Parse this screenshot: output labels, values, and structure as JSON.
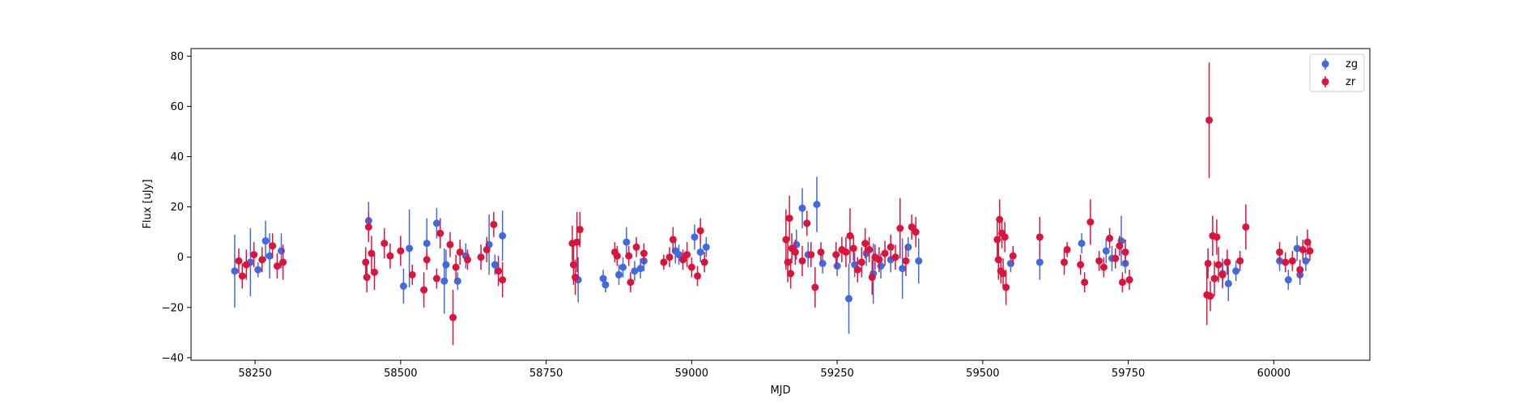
{
  "chart_data": {
    "type": "scatter",
    "title": "",
    "xlabel": "MJD",
    "ylabel": "Flux [uJy]",
    "xlim": [
      58140,
      60165
    ],
    "ylim": [
      -41,
      83
    ],
    "x_ticks": [
      58250,
      58500,
      58750,
      59000,
      59250,
      59500,
      59750,
      60000
    ],
    "y_ticks": [
      -40,
      -20,
      0,
      20,
      40,
      60,
      80
    ],
    "grid": false,
    "legend_position": "top-right",
    "error_bars": true,
    "series": [
      {
        "name": "zg",
        "color": "#4169E1",
        "points": [
          {
            "x": 58215,
            "y": -5.5,
            "err": 14.5
          },
          {
            "x": 58242,
            "y": -2.0,
            "err": 13.5
          },
          {
            "x": 58255,
            "y": -5.0,
            "err": 3.0
          },
          {
            "x": 58268,
            "y": 6.5,
            "err": 8.0
          },
          {
            "x": 58275,
            "y": 0.5,
            "err": 9.0
          },
          {
            "x": 58295,
            "y": 2.5,
            "err": 7.0
          },
          {
            "x": 58445,
            "y": 14.5,
            "err": 7.5
          },
          {
            "x": 58505,
            "y": -11.5,
            "err": 7.0
          },
          {
            "x": 58515,
            "y": 3.5,
            "err": 15.5
          },
          {
            "x": 58545,
            "y": 5.5,
            "err": 10.0
          },
          {
            "x": 58562,
            "y": 13.5,
            "err": 6.0
          },
          {
            "x": 58575,
            "y": -9.5,
            "err": 13.0
          },
          {
            "x": 58578,
            "y": -3.0,
            "err": 6.0
          },
          {
            "x": 58598,
            "y": -9.5,
            "err": 3.5
          },
          {
            "x": 58612,
            "y": 0.5,
            "err": 5.0
          },
          {
            "x": 58652,
            "y": 5.0,
            "err": 12.0
          },
          {
            "x": 58662,
            "y": -3.0,
            "err": 4.0
          },
          {
            "x": 58675,
            "y": 8.5,
            "err": 10.0
          },
          {
            "x": 58805,
            "y": -9.0,
            "err": 9.0
          },
          {
            "x": 58848,
            "y": -8.5,
            "err": 3.5
          },
          {
            "x": 58852,
            "y": -11.0,
            "err": 3.0
          },
          {
            "x": 58875,
            "y": -7.0,
            "err": 4.0
          },
          {
            "x": 58882,
            "y": -4.0,
            "err": 4.0
          },
          {
            "x": 58888,
            "y": 6.0,
            "err": 6.0
          },
          {
            "x": 58902,
            "y": -5.5,
            "err": 4.0
          },
          {
            "x": 58912,
            "y": -4.5,
            "err": 4.0
          },
          {
            "x": 58918,
            "y": -1.5,
            "err": 4.0
          },
          {
            "x": 58972,
            "y": 2.5,
            "err": 5.0
          },
          {
            "x": 58978,
            "y": 1.0,
            "err": 4.0
          },
          {
            "x": 59005,
            "y": 8.0,
            "err": 5.0
          },
          {
            "x": 59015,
            "y": 2.0,
            "err": 4.0
          },
          {
            "x": 59025,
            "y": 4.0,
            "err": 4.0
          },
          {
            "x": 59180,
            "y": 5.0,
            "err": 6.0
          },
          {
            "x": 59190,
            "y": 19.5,
            "err": 8.0
          },
          {
            "x": 59200,
            "y": 1.0,
            "err": 5.0
          },
          {
            "x": 59215,
            "y": 21.0,
            "err": 11.0
          },
          {
            "x": 59225,
            "y": -2.5,
            "err": 4.0
          },
          {
            "x": 59250,
            "y": -3.5,
            "err": 4.0
          },
          {
            "x": 59270,
            "y": -16.5,
            "err": 14.0
          },
          {
            "x": 59280,
            "y": -3.0,
            "err": 5.0
          },
          {
            "x": 59300,
            "y": 1.5,
            "err": 5.0
          },
          {
            "x": 59312,
            "y": -6.5,
            "err": 12.0
          },
          {
            "x": 59325,
            "y": -3.5,
            "err": 5.0
          },
          {
            "x": 59342,
            "y": -1.0,
            "err": 5.0
          },
          {
            "x": 59362,
            "y": -4.5,
            "err": 12.0
          },
          {
            "x": 59372,
            "y": 4.0,
            "err": 4.0
          },
          {
            "x": 59390,
            "y": -1.5,
            "err": 9.0
          },
          {
            "x": 59548,
            "y": -2.5,
            "err": 3.5
          },
          {
            "x": 59598,
            "y": -2.0,
            "err": 7.0
          },
          {
            "x": 59670,
            "y": 5.5,
            "err": 4.0
          },
          {
            "x": 59712,
            "y": 2.5,
            "err": 5.0
          },
          {
            "x": 59722,
            "y": -0.5,
            "err": 5.0
          },
          {
            "x": 59738,
            "y": 6.5,
            "err": 10.0
          },
          {
            "x": 59745,
            "y": -2.5,
            "err": 4.0
          },
          {
            "x": 59912,
            "y": -6.5,
            "err": 6.0
          },
          {
            "x": 59922,
            "y": -10.5,
            "err": 7.0
          },
          {
            "x": 59935,
            "y": -5.5,
            "err": 4.0
          },
          {
            "x": 60010,
            "y": -1.5,
            "err": 4.0
          },
          {
            "x": 60025,
            "y": -9.0,
            "err": 4.0
          },
          {
            "x": 60040,
            "y": 3.5,
            "err": 5.0
          },
          {
            "x": 60045,
            "y": -7.0,
            "err": 4.0
          },
          {
            "x": 60055,
            "y": -1.5,
            "err": 4.0
          }
        ]
      },
      {
        "name": "zr",
        "color": "#DC143C",
        "points": [
          {
            "x": 58222,
            "y": -1.5,
            "err": 5.0
          },
          {
            "x": 58228,
            "y": -7.5,
            "err": 5.0
          },
          {
            "x": 58235,
            "y": -3.0,
            "err": 6.0
          },
          {
            "x": 58248,
            "y": 1.0,
            "err": 5.0
          },
          {
            "x": 58262,
            "y": -1.0,
            "err": 5.0
          },
          {
            "x": 58280,
            "y": 4.5,
            "err": 5.0
          },
          {
            "x": 58288,
            "y": -3.5,
            "err": 5.0
          },
          {
            "x": 58298,
            "y": -2.0,
            "err": 7.0
          },
          {
            "x": 58440,
            "y": -2.0,
            "err": 6.0
          },
          {
            "x": 58442,
            "y": -8.0,
            "err": 6.0
          },
          {
            "x": 58445,
            "y": 12.0,
            "err": 6.0
          },
          {
            "x": 58450,
            "y": 1.5,
            "err": 7.0
          },
          {
            "x": 58455,
            "y": -6.0,
            "err": 7.0
          },
          {
            "x": 58472,
            "y": 5.5,
            "err": 6.0
          },
          {
            "x": 58482,
            "y": 0.5,
            "err": 5.0
          },
          {
            "x": 58500,
            "y": 2.5,
            "err": 6.0
          },
          {
            "x": 58520,
            "y": -7.0,
            "err": 4.0
          },
          {
            "x": 58540,
            "y": -13.0,
            "err": 7.0
          },
          {
            "x": 58545,
            "y": -1.0,
            "err": 4.0
          },
          {
            "x": 58562,
            "y": -8.5,
            "err": 4.0
          },
          {
            "x": 58568,
            "y": 9.5,
            "err": 6.0
          },
          {
            "x": 58585,
            "y": 5.0,
            "err": 5.0
          },
          {
            "x": 58590,
            "y": -24.0,
            "err": 11.0
          },
          {
            "x": 58595,
            "y": -4.0,
            "err": 5.0
          },
          {
            "x": 58602,
            "y": 2.0,
            "err": 5.0
          },
          {
            "x": 58615,
            "y": -1.0,
            "err": 4.0
          },
          {
            "x": 58638,
            "y": 0.0,
            "err": 5.0
          },
          {
            "x": 58648,
            "y": 3.0,
            "err": 5.0
          },
          {
            "x": 58660,
            "y": 13.0,
            "err": 5.0
          },
          {
            "x": 58668,
            "y": -5.5,
            "err": 6.0
          },
          {
            "x": 58675,
            "y": -9.0,
            "err": 7.0
          },
          {
            "x": 58795,
            "y": 5.5,
            "err": 7.0
          },
          {
            "x": 58797,
            "y": -3.0,
            "err": 8.0
          },
          {
            "x": 58800,
            "y": -8.0,
            "err": 7.0
          },
          {
            "x": 58803,
            "y": 6.0,
            "err": 12.0
          },
          {
            "x": 58808,
            "y": 11.0,
            "err": 7.0
          },
          {
            "x": 58868,
            "y": 2.0,
            "err": 4.0
          },
          {
            "x": 58872,
            "y": 0.5,
            "err": 4.0
          },
          {
            "x": 58892,
            "y": 0.5,
            "err": 4.0
          },
          {
            "x": 58895,
            "y": -10.0,
            "err": 4.0
          },
          {
            "x": 58905,
            "y": 4.0,
            "err": 4.0
          },
          {
            "x": 58918,
            "y": 1.5,
            "err": 4.0
          },
          {
            "x": 58952,
            "y": -2.0,
            "err": 3.0
          },
          {
            "x": 58962,
            "y": 0.0,
            "err": 4.0
          },
          {
            "x": 58968,
            "y": 7.0,
            "err": 5.0
          },
          {
            "x": 58985,
            "y": -1.0,
            "err": 4.0
          },
          {
            "x": 58992,
            "y": 1.0,
            "err": 5.0
          },
          {
            "x": 59000,
            "y": -4.0,
            "err": 4.0
          },
          {
            "x": 59010,
            "y": -7.5,
            "err": 4.0
          },
          {
            "x": 59015,
            "y": 10.5,
            "err": 5.0
          },
          {
            "x": 59022,
            "y": -2.0,
            "err": 4.0
          },
          {
            "x": 59162,
            "y": 7.0,
            "err": 12.0
          },
          {
            "x": 59165,
            "y": -2.0,
            "err": 8.0
          },
          {
            "x": 59168,
            "y": 15.5,
            "err": 9.0
          },
          {
            "x": 59170,
            "y": -6.5,
            "err": 6.0
          },
          {
            "x": 59172,
            "y": 3.5,
            "err": 6.0
          },
          {
            "x": 59178,
            "y": 2.0,
            "err": 5.0
          },
          {
            "x": 59190,
            "y": -1.5,
            "err": 6.0
          },
          {
            "x": 59198,
            "y": 13.5,
            "err": 5.0
          },
          {
            "x": 59205,
            "y": 1.0,
            "err": 5.0
          },
          {
            "x": 59212,
            "y": -12.0,
            "err": 8.0
          },
          {
            "x": 59222,
            "y": 2.0,
            "err": 4.0
          },
          {
            "x": 59248,
            "y": 1.0,
            "err": 5.0
          },
          {
            "x": 59258,
            "y": 3.0,
            "err": 5.0
          },
          {
            "x": 59265,
            "y": 2.0,
            "err": 6.0
          },
          {
            "x": 59272,
            "y": 8.5,
            "err": 11.0
          },
          {
            "x": 59278,
            "y": 3.5,
            "err": 5.0
          },
          {
            "x": 59285,
            "y": -5.0,
            "err": 5.0
          },
          {
            "x": 59292,
            "y": -2.0,
            "err": 6.0
          },
          {
            "x": 59298,
            "y": 5.5,
            "err": 6.0
          },
          {
            "x": 59305,
            "y": 3.0,
            "err": 5.0
          },
          {
            "x": 59310,
            "y": -8.0,
            "err": 7.0
          },
          {
            "x": 59315,
            "y": 0.0,
            "err": 5.0
          },
          {
            "x": 59322,
            "y": -1.0,
            "err": 5.0
          },
          {
            "x": 59332,
            "y": 1.5,
            "err": 5.0
          },
          {
            "x": 59342,
            "y": 4.0,
            "err": 5.0
          },
          {
            "x": 59350,
            "y": 0.0,
            "err": 5.0
          },
          {
            "x": 59358,
            "y": 11.5,
            "err": 12.0
          },
          {
            "x": 59368,
            "y": -1.5,
            "err": 6.0
          },
          {
            "x": 59378,
            "y": 12.0,
            "err": 5.0
          },
          {
            "x": 59385,
            "y": 10.0,
            "err": 6.0
          },
          {
            "x": 59525,
            "y": 7.0,
            "err": 7.0
          },
          {
            "x": 59527,
            "y": -1.0,
            "err": 8.0
          },
          {
            "x": 59529,
            "y": 15.0,
            "err": 8.0
          },
          {
            "x": 59531,
            "y": -5.5,
            "err": 5.0
          },
          {
            "x": 59533,
            "y": 9.5,
            "err": 6.0
          },
          {
            "x": 59535,
            "y": -6.5,
            "err": 6.0
          },
          {
            "x": 59538,
            "y": 8.0,
            "err": 6.0
          },
          {
            "x": 59540,
            "y": -12.0,
            "err": 7.0
          },
          {
            "x": 59552,
            "y": 0.5,
            "err": 4.0
          },
          {
            "x": 59598,
            "y": 8.0,
            "err": 8.0
          },
          {
            "x": 59640,
            "y": -2.0,
            "err": 5.0
          },
          {
            "x": 59645,
            "y": 3.0,
            "err": 3.0
          },
          {
            "x": 59668,
            "y": -3.0,
            "err": 4.0
          },
          {
            "x": 59675,
            "y": -10.0,
            "err": 4.0
          },
          {
            "x": 59685,
            "y": 14.0,
            "err": 9.0
          },
          {
            "x": 59700,
            "y": -1.5,
            "err": 4.0
          },
          {
            "x": 59708,
            "y": -4.0,
            "err": 4.0
          },
          {
            "x": 59718,
            "y": 7.5,
            "err": 4.0
          },
          {
            "x": 59728,
            "y": -0.5,
            "err": 4.0
          },
          {
            "x": 59735,
            "y": 4.5,
            "err": 4.0
          },
          {
            "x": 59740,
            "y": -10.0,
            "err": 4.0
          },
          {
            "x": 59745,
            "y": 2.0,
            "err": 5.0
          },
          {
            "x": 59752,
            "y": -9.0,
            "err": 4.0
          },
          {
            "x": 59885,
            "y": -15.0,
            "err": 12.0
          },
          {
            "x": 59887,
            "y": -2.5,
            "err": 6.0
          },
          {
            "x": 59889,
            "y": 54.5,
            "err": 23.0
          },
          {
            "x": 59891,
            "y": -15.5,
            "err": 6.0
          },
          {
            "x": 59895,
            "y": 8.5,
            "err": 8.0
          },
          {
            "x": 59898,
            "y": -8.5,
            "err": 7.0
          },
          {
            "x": 59902,
            "y": 8.0,
            "err": 7.0
          },
          {
            "x": 59905,
            "y": -3.0,
            "err": 7.0
          },
          {
            "x": 59912,
            "y": -7.0,
            "err": 5.0
          },
          {
            "x": 59920,
            "y": -2.0,
            "err": 5.0
          },
          {
            "x": 59942,
            "y": -1.5,
            "err": 4.0
          },
          {
            "x": 59952,
            "y": 12.0,
            "err": 9.0
          },
          {
            "x": 60010,
            "y": 2.0,
            "err": 4.0
          },
          {
            "x": 60020,
            "y": -2.0,
            "err": 4.0
          },
          {
            "x": 60032,
            "y": -1.5,
            "err": 4.0
          },
          {
            "x": 60045,
            "y": -5.0,
            "err": 4.0
          },
          {
            "x": 60050,
            "y": 3.0,
            "err": 4.0
          },
          {
            "x": 60058,
            "y": 6.0,
            "err": 5.0
          },
          {
            "x": 60062,
            "y": 2.5,
            "err": 4.0
          }
        ]
      }
    ]
  }
}
